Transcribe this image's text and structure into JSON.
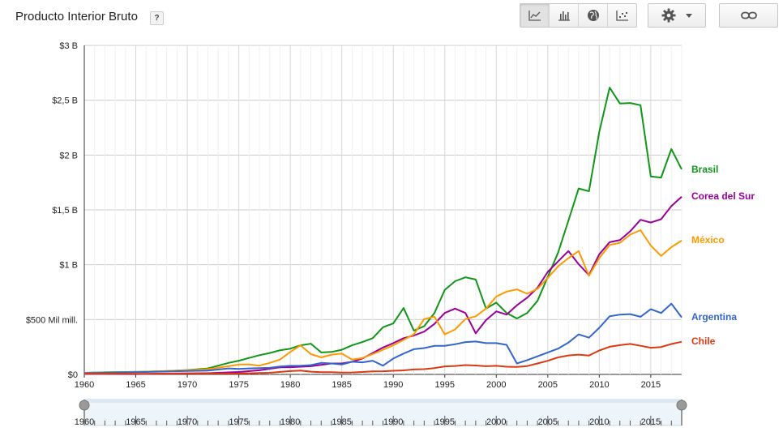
{
  "header": {
    "title": "Producto Interior Bruto",
    "help_label": "?"
  },
  "toolbar": {
    "buttons": [
      "line-chart-icon",
      "bar-chart-icon",
      "globe-icon",
      "scatter-icon"
    ],
    "active": "line-chart-icon",
    "settings_icon": "gear-icon",
    "dropdown_icon": "caret-down-icon",
    "link_icon": "link-icon"
  },
  "chart_data": {
    "type": "line",
    "xlim": [
      1960,
      2018
    ],
    "ylim": [
      0,
      3000
    ],
    "x_ticks": [
      1960,
      1965,
      1970,
      1975,
      1980,
      1985,
      1990,
      1995,
      2000,
      2005,
      2010,
      2015
    ],
    "y_ticks": [
      {
        "value": 0,
        "label": "$0"
      },
      {
        "value": 500,
        "label": "$500 Mil mill."
      },
      {
        "value": 1000,
        "label": "$1 B"
      },
      {
        "value": 1500,
        "label": "$1,5 B"
      },
      {
        "value": 2000,
        "label": "$2 B"
      },
      {
        "value": 2500,
        "label": "$2,5 B"
      },
      {
        "value": 3000,
        "label": "$3 B"
      }
    ],
    "grid": true,
    "legend": "right, labels at line ends",
    "series": [
      {
        "name": "Brasil",
        "color": "#109618",
        "points": [
          [
            1960,
            15
          ],
          [
            1962,
            20
          ],
          [
            1964,
            22
          ],
          [
            1966,
            25
          ],
          [
            1968,
            30
          ],
          [
            1970,
            40
          ],
          [
            1972,
            55
          ],
          [
            1973,
            80
          ],
          [
            1974,
            105
          ],
          [
            1975,
            125
          ],
          [
            1976,
            150
          ],
          [
            1977,
            175
          ],
          [
            1978,
            195
          ],
          [
            1979,
            220
          ],
          [
            1980,
            235
          ],
          [
            1981,
            265
          ],
          [
            1982,
            280
          ],
          [
            1983,
            200
          ],
          [
            1984,
            205
          ],
          [
            1985,
            225
          ],
          [
            1986,
            265
          ],
          [
            1987,
            295
          ],
          [
            1988,
            330
          ],
          [
            1989,
            430
          ],
          [
            1990,
            465
          ],
          [
            1991,
            605
          ],
          [
            1992,
            400
          ],
          [
            1993,
            440
          ],
          [
            1994,
            560
          ],
          [
            1995,
            770
          ],
          [
            1996,
            850
          ],
          [
            1997,
            885
          ],
          [
            1998,
            865
          ],
          [
            1999,
            600
          ],
          [
            2000,
            655
          ],
          [
            2001,
            560
          ],
          [
            2002,
            510
          ],
          [
            2003,
            560
          ],
          [
            2004,
            670
          ],
          [
            2005,
            890
          ],
          [
            2006,
            1110
          ],
          [
            2007,
            1400
          ],
          [
            2008,
            1695
          ],
          [
            2009,
            1670
          ],
          [
            2010,
            2210
          ],
          [
            2011,
            2615
          ],
          [
            2012,
            2470
          ],
          [
            2013,
            2475
          ],
          [
            2014,
            2455
          ],
          [
            2015,
            1805
          ],
          [
            2016,
            1795
          ],
          [
            2017,
            2055
          ],
          [
            2018,
            1870
          ]
        ]
      },
      {
        "name": "Corea del Sur",
        "color": "#990099",
        "points": [
          [
            1960,
            4
          ],
          [
            1965,
            3
          ],
          [
            1970,
            9
          ],
          [
            1972,
            11
          ],
          [
            1975,
            22
          ],
          [
            1977,
            38
          ],
          [
            1979,
            65
          ],
          [
            1980,
            66
          ],
          [
            1982,
            75
          ],
          [
            1984,
            100
          ],
          [
            1985,
            100
          ],
          [
            1986,
            115
          ],
          [
            1987,
            145
          ],
          [
            1988,
            195
          ],
          [
            1989,
            245
          ],
          [
            1990,
            285
          ],
          [
            1991,
            330
          ],
          [
            1992,
            355
          ],
          [
            1993,
            390
          ],
          [
            1994,
            460
          ],
          [
            1995,
            560
          ],
          [
            1996,
            600
          ],
          [
            1997,
            560
          ],
          [
            1998,
            375
          ],
          [
            1999,
            495
          ],
          [
            2000,
            575
          ],
          [
            2001,
            545
          ],
          [
            2002,
            630
          ],
          [
            2003,
            700
          ],
          [
            2004,
            790
          ],
          [
            2005,
            935
          ],
          [
            2006,
            1030
          ],
          [
            2007,
            1125
          ],
          [
            2008,
            1005
          ],
          [
            2009,
            905
          ],
          [
            2010,
            1095
          ],
          [
            2011,
            1205
          ],
          [
            2012,
            1225
          ],
          [
            2013,
            1305
          ],
          [
            2014,
            1410
          ],
          [
            2015,
            1385
          ],
          [
            2016,
            1415
          ],
          [
            2017,
            1535
          ],
          [
            2018,
            1620
          ]
        ]
      },
      {
        "name": "México",
        "color": "#ff9900",
        "points": [
          [
            1960,
            15
          ],
          [
            1965,
            22
          ],
          [
            1970,
            38
          ],
          [
            1972,
            48
          ],
          [
            1974,
            75
          ],
          [
            1975,
            90
          ],
          [
            1976,
            90
          ],
          [
            1977,
            80
          ],
          [
            1978,
            105
          ],
          [
            1979,
            135
          ],
          [
            1980,
            205
          ],
          [
            1981,
            265
          ],
          [
            1982,
            185
          ],
          [
            1983,
            155
          ],
          [
            1984,
            180
          ],
          [
            1985,
            190
          ],
          [
            1986,
            135
          ],
          [
            1987,
            150
          ],
          [
            1988,
            185
          ],
          [
            1989,
            225
          ],
          [
            1990,
            265
          ],
          [
            1991,
            315
          ],
          [
            1992,
            365
          ],
          [
            1993,
            505
          ],
          [
            1994,
            525
          ],
          [
            1995,
            365
          ],
          [
            1996,
            410
          ],
          [
            1997,
            505
          ],
          [
            1998,
            530
          ],
          [
            1999,
            600
          ],
          [
            2000,
            710
          ],
          [
            2001,
            755
          ],
          [
            2002,
            775
          ],
          [
            2003,
            735
          ],
          [
            2004,
            780
          ],
          [
            2005,
            880
          ],
          [
            2006,
            985
          ],
          [
            2007,
            1060
          ],
          [
            2008,
            1125
          ],
          [
            2009,
            900
          ],
          [
            2010,
            1060
          ],
          [
            2011,
            1180
          ],
          [
            2012,
            1200
          ],
          [
            2013,
            1275
          ],
          [
            2014,
            1315
          ],
          [
            2015,
            1175
          ],
          [
            2016,
            1080
          ],
          [
            2017,
            1160
          ],
          [
            2018,
            1220
          ]
        ]
      },
      {
        "name": "Argentina",
        "color": "#3366cc",
        "points": [
          [
            1960,
            12
          ],
          [
            1965,
            20
          ],
          [
            1970,
            32
          ],
          [
            1972,
            35
          ],
          [
            1974,
            55
          ],
          [
            1975,
            50
          ],
          [
            1976,
            55
          ],
          [
            1977,
            58
          ],
          [
            1978,
            60
          ],
          [
            1979,
            72
          ],
          [
            1980,
            78
          ],
          [
            1981,
            80
          ],
          [
            1982,
            85
          ],
          [
            1983,
            105
          ],
          [
            1984,
            100
          ],
          [
            1985,
            90
          ],
          [
            1986,
            115
          ],
          [
            1987,
            110
          ],
          [
            1988,
            125
          ],
          [
            1989,
            80
          ],
          [
            1990,
            145
          ],
          [
            1991,
            190
          ],
          [
            1992,
            230
          ],
          [
            1993,
            240
          ],
          [
            1994,
            260
          ],
          [
            1995,
            260
          ],
          [
            1996,
            275
          ],
          [
            1997,
            295
          ],
          [
            1998,
            300
          ],
          [
            1999,
            285
          ],
          [
            2000,
            285
          ],
          [
            2001,
            270
          ],
          [
            2002,
            100
          ],
          [
            2003,
            130
          ],
          [
            2004,
            165
          ],
          [
            2005,
            200
          ],
          [
            2006,
            235
          ],
          [
            2007,
            290
          ],
          [
            2008,
            365
          ],
          [
            2009,
            335
          ],
          [
            2010,
            425
          ],
          [
            2011,
            530
          ],
          [
            2012,
            545
          ],
          [
            2013,
            550
          ],
          [
            2014,
            525
          ],
          [
            2015,
            595
          ],
          [
            2016,
            560
          ],
          [
            2017,
            645
          ],
          [
            2018,
            520
          ]
        ]
      },
      {
        "name": "Chile",
        "color": "#dc3912",
        "points": [
          [
            1960,
            5
          ],
          [
            1965,
            6
          ],
          [
            1970,
            9
          ],
          [
            1975,
            8
          ],
          [
            1978,
            15
          ],
          [
            1980,
            30
          ],
          [
            1981,
            35
          ],
          [
            1982,
            25
          ],
          [
            1983,
            20
          ],
          [
            1984,
            20
          ],
          [
            1985,
            17
          ],
          [
            1986,
            18
          ],
          [
            1987,
            22
          ],
          [
            1988,
            27
          ],
          [
            1989,
            29
          ],
          [
            1990,
            33
          ],
          [
            1991,
            37
          ],
          [
            1992,
            45
          ],
          [
            1993,
            48
          ],
          [
            1994,
            58
          ],
          [
            1995,
            73
          ],
          [
            1996,
            77
          ],
          [
            1997,
            85
          ],
          [
            1998,
            81
          ],
          [
            1999,
            75
          ],
          [
            2000,
            78
          ],
          [
            2001,
            70
          ],
          [
            2002,
            68
          ],
          [
            2003,
            76
          ],
          [
            2004,
            100
          ],
          [
            2005,
            124
          ],
          [
            2006,
            155
          ],
          [
            2007,
            173
          ],
          [
            2008,
            180
          ],
          [
            2009,
            172
          ],
          [
            2010,
            218
          ],
          [
            2011,
            252
          ],
          [
            2012,
            267
          ],
          [
            2013,
            278
          ],
          [
            2014,
            261
          ],
          [
            2015,
            243
          ],
          [
            2016,
            250
          ],
          [
            2017,
            277
          ],
          [
            2018,
            298
          ]
        ]
      }
    ]
  },
  "range_selector": {
    "start": 1960,
    "end": 2018,
    "ticks": [
      1960,
      1965,
      1970,
      1975,
      1980,
      1985,
      1990,
      1995,
      2000,
      2005,
      2010,
      2015
    ]
  }
}
